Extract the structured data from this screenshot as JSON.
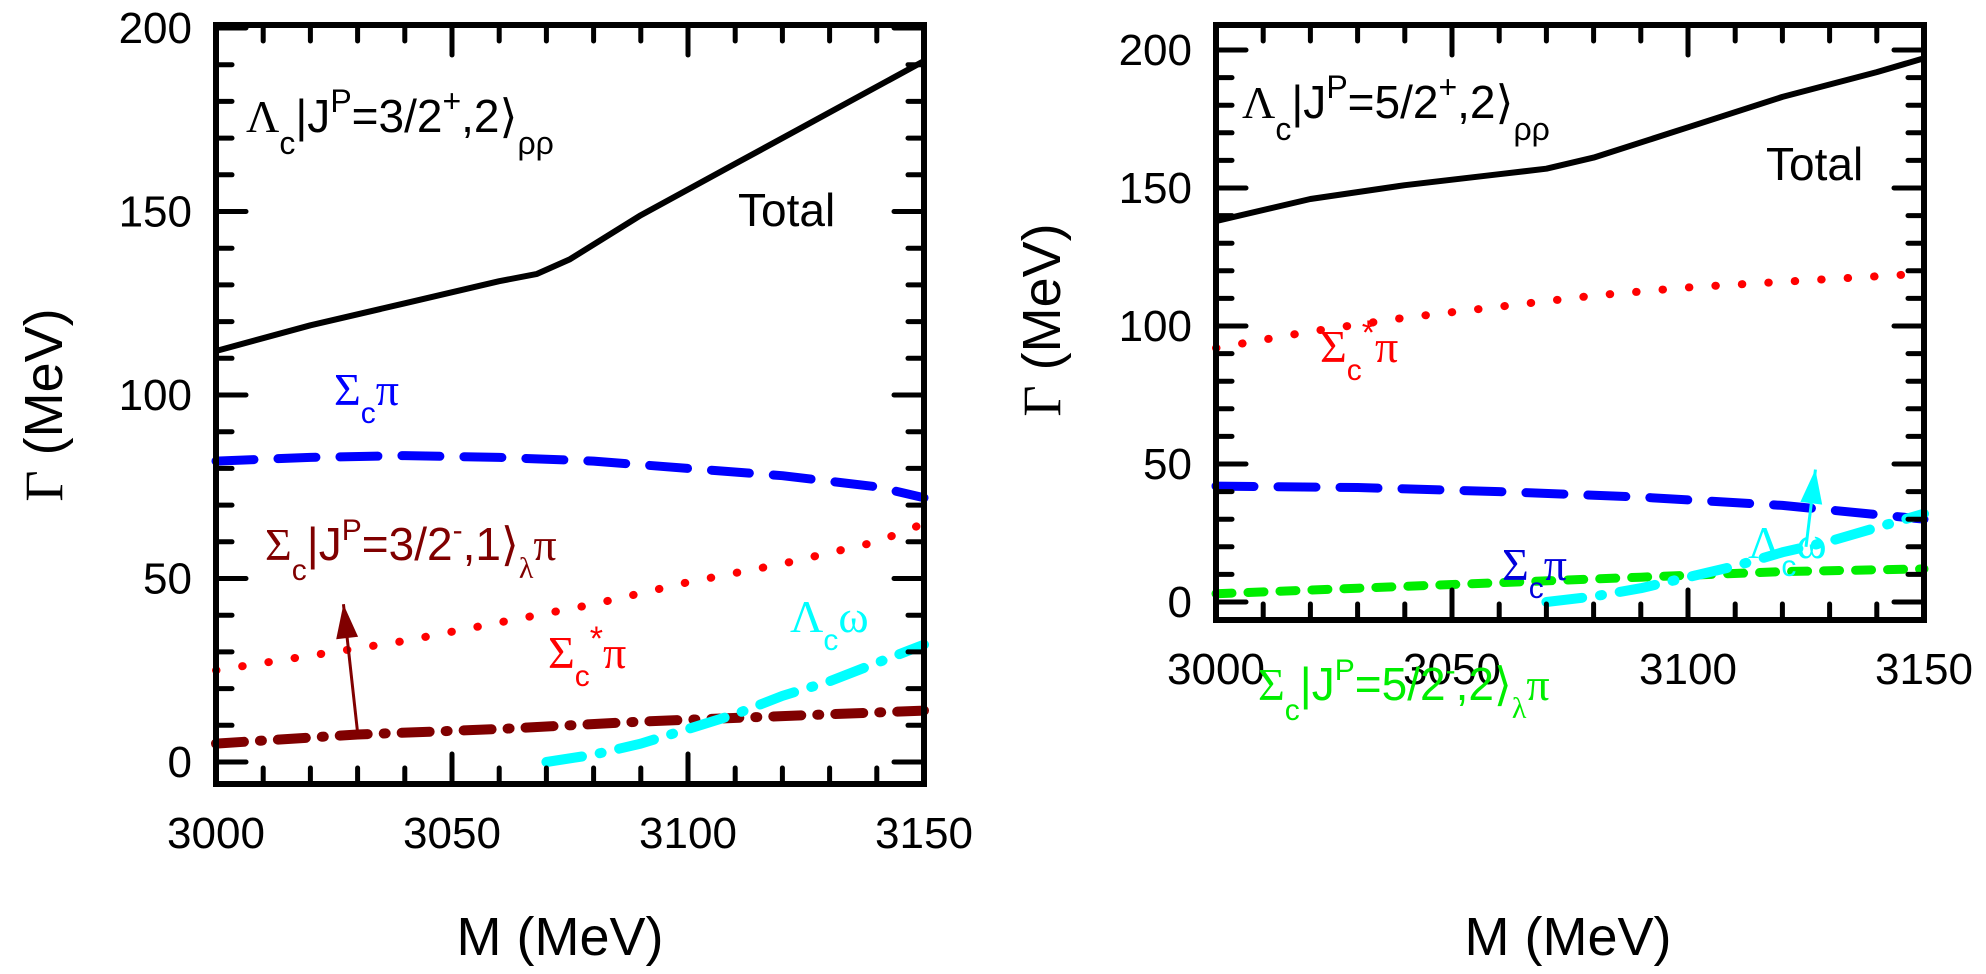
{
  "chart_data": [
    {
      "type": "line",
      "panel": "left",
      "title": "Λc|J^P=3/2+,2⟩ρρ",
      "title_parts": {
        "base": "Λ",
        "sub1": "c",
        "mid": "|J",
        "sup1": "P",
        "rest": "=3/2",
        "sup2": "+",
        "tail": ",2⟩",
        "sub2": "ρρ"
      },
      "xlabel": "M (MeV)",
      "ylabel": "Γ (MeV)",
      "ylabel_parts": {
        "greek": "Γ",
        "rest": " (MeV)"
      },
      "xlim": [
        3000,
        3150
      ],
      "ylim": [
        0,
        200
      ],
      "x_ticks": [
        3000,
        3050,
        3100,
        3150
      ],
      "y_ticks": [
        0,
        50,
        100,
        150,
        200
      ],
      "x_tick_labels": [
        "3000",
        "3050",
        "3100",
        "3150"
      ],
      "y_tick_labels": [
        "0",
        "50",
        "100",
        "150",
        "200"
      ],
      "grid": false,
      "series": [
        {
          "name": "Total",
          "color": "#000000",
          "style": "solid",
          "x": [
            3000,
            3020,
            3040,
            3060,
            3068,
            3075,
            3090,
            3110,
            3130,
            3150
          ],
          "y": [
            112,
            119,
            125,
            131,
            133,
            137,
            149,
            163,
            177,
            191
          ]
        },
        {
          "name": "Σcπ",
          "color": "#0000ff",
          "style": "dash",
          "x": [
            3000,
            3020,
            3040,
            3060,
            3080,
            3100,
            3120,
            3140,
            3150
          ],
          "y": [
            82,
            83,
            83.5,
            83,
            82,
            80,
            78,
            75,
            72
          ]
        },
        {
          "name": "Σc*π",
          "color": "#ff0000",
          "style": "dot",
          "x": [
            3000,
            3020,
            3040,
            3060,
            3080,
            3100,
            3120,
            3140,
            3150
          ],
          "y": [
            25,
            29,
            33,
            38,
            43,
            49,
            54,
            60,
            65
          ]
        },
        {
          "name": "Σc|J^P=3/2-,1⟩λπ",
          "color": "#800000",
          "style": "dashdotdot",
          "x": [
            3000,
            3030,
            3060,
            3090,
            3120,
            3150
          ],
          "y": [
            5,
            7.5,
            9,
            11,
            12.5,
            14
          ]
        },
        {
          "name": "Λcω",
          "color": "#00ffff",
          "style": "dashdot",
          "x": [
            3070,
            3080,
            3090,
            3100,
            3110,
            3120,
            3130,
            3140,
            3150
          ],
          "y": [
            0,
            2,
            5,
            9,
            13,
            18,
            22,
            27,
            32
          ]
        }
      ],
      "annotations": [
        {
          "text": "Total",
          "color": "#000000"
        },
        {
          "text": "Σcπ",
          "color": "#0000ff",
          "parts": {
            "base": "Σ",
            "sub": "c",
            "tail": "π"
          }
        },
        {
          "text": "Σc|J^P=3/2-,1⟩λπ",
          "color": "#800000",
          "parts": {
            "base": "Σ",
            "sub1": "c",
            "mid": "|J",
            "sup1": "P",
            "rest": "=3/2",
            "sup2": "-",
            "tail": ",1⟩",
            "sub2": "λ",
            "end": "π"
          },
          "arrow_to": [
            3030,
            8
          ],
          "arrow_from": [
            3027,
            43
          ]
        },
        {
          "text": "Σc*π",
          "color": "#ff0000",
          "parts": {
            "base": "Σ",
            "sub": "c",
            "sup": "*",
            "tail": "π"
          }
        },
        {
          "text": "Λcω",
          "color": "#00ffff",
          "parts": {
            "base": "Λ",
            "sub": "c",
            "tail": "ω"
          }
        }
      ]
    },
    {
      "type": "line",
      "panel": "right",
      "title": "Λc|J^P=5/2+,2⟩ρρ",
      "title_parts": {
        "base": "Λ",
        "sub1": "c",
        "mid": "|J",
        "sup1": "P",
        "rest": "=5/2",
        "sup2": "+",
        "tail": ",2⟩",
        "sub2": "ρρ"
      },
      "xlabel": "M (MeV)",
      "ylabel": "Γ (MeV)",
      "ylabel_parts": {
        "greek": "Γ",
        "rest": " (MeV)"
      },
      "xlim": [
        3000,
        3150
      ],
      "ylim": [
        0,
        200
      ],
      "x_ticks": [
        3000,
        3050,
        3100,
        3150
      ],
      "y_ticks": [
        0,
        50,
        100,
        150,
        200
      ],
      "x_tick_labels": [
        "3000",
        "3050",
        "3100",
        "3150"
      ],
      "y_tick_labels": [
        "0",
        "50",
        "100",
        "150",
        "200"
      ],
      "grid": false,
      "series": [
        {
          "name": "Total",
          "color": "#000000",
          "style": "solid",
          "x": [
            3000,
            3020,
            3040,
            3060,
            3070,
            3080,
            3100,
            3120,
            3140,
            3150
          ],
          "y": [
            138,
            146,
            151,
            155,
            157,
            161,
            172,
            183,
            192,
            197
          ]
        },
        {
          "name": "Σc*π",
          "color": "#ff0000",
          "style": "dot",
          "x": [
            3000,
            3020,
            3040,
            3060,
            3080,
            3100,
            3120,
            3140,
            3150
          ],
          "y": [
            92,
            98,
            103,
            107,
            111,
            114,
            116,
            118,
            119
          ]
        },
        {
          "name": "Σcπ",
          "color": "#0000ff",
          "style": "dash",
          "x": [
            3000,
            3030,
            3060,
            3090,
            3120,
            3150
          ],
          "y": [
            42,
            41.5,
            40,
            38,
            35,
            30
          ]
        },
        {
          "name": "Σc|J^P=5/2-,2⟩λπ",
          "color": "#00ee00",
          "style": "shortdash",
          "x": [
            3000,
            3030,
            3060,
            3090,
            3120,
            3150
          ],
          "y": [
            3,
            5,
            7,
            9,
            11,
            12
          ]
        },
        {
          "name": "Λcω",
          "color": "#00ffff",
          "style": "dashdot",
          "x": [
            3070,
            3080,
            3090,
            3100,
            3110,
            3120,
            3130,
            3140,
            3150
          ],
          "y": [
            0,
            2,
            5,
            9,
            13,
            18,
            22,
            27,
            32
          ]
        }
      ],
      "annotations": [
        {
          "text": "Total",
          "color": "#000000"
        },
        {
          "text": "Σc*π",
          "color": "#ff0000",
          "parts": {
            "base": "Σ",
            "sub": "c",
            "sup": "*",
            "tail": "π"
          }
        },
        {
          "text": "Σcπ",
          "color": "#0000ff",
          "parts": {
            "base": "Σ",
            "sub": "c",
            "tail": "π"
          }
        },
        {
          "text": "Σc|J^P=5/2-,2⟩λπ",
          "color": "#00ee00",
          "parts": {
            "base": "Σ",
            "sub1": "c",
            "mid": "|J",
            "sup1": "P",
            "rest": "=5/2",
            "sup2": "-",
            "tail": ",2⟩",
            "sub2": "λ",
            "end": "π"
          }
        },
        {
          "text": "Λcω",
          "color": "#00ffff",
          "parts": {
            "base": "Λ",
            "sub": "c",
            "tail": "ω"
          },
          "arrow_from": [
            3125,
            20
          ],
          "arrow_to": [
            3127,
            48
          ]
        }
      ]
    }
  ]
}
